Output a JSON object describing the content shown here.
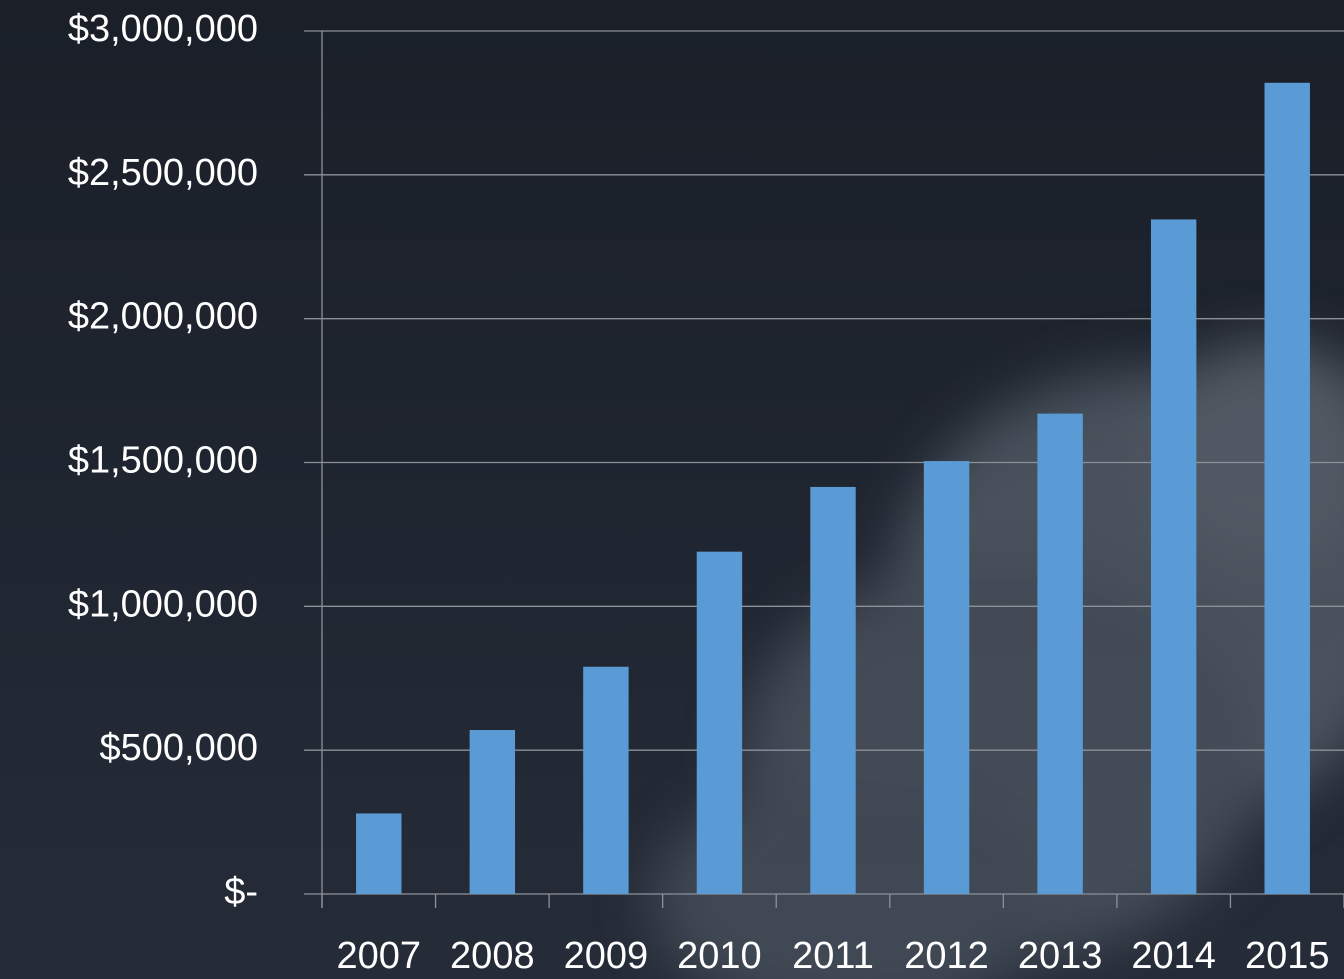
{
  "chart_data": {
    "type": "bar",
    "categories": [
      "2007",
      "2008",
      "2009",
      "2010",
      "2011",
      "2012",
      "2013",
      "2014",
      "2015"
    ],
    "values": [
      280000,
      570000,
      790000,
      1190000,
      1415000,
      1505000,
      1670000,
      2345000,
      2820000
    ],
    "color": "#5b9bd5",
    "ylim": [
      0,
      3000000
    ],
    "yticks": [
      {
        "value": 0,
        "label": "$-"
      },
      {
        "value": 500000,
        "label": "$500,000"
      },
      {
        "value": 1000000,
        "label": "$1,000,000"
      },
      {
        "value": 1500000,
        "label": "$1,500,000"
      },
      {
        "value": 2000000,
        "label": "$2,000,000"
      },
      {
        "value": 2500000,
        "label": "$2,500,000"
      },
      {
        "value": 3000000,
        "label": "$3,000,000"
      }
    ],
    "grid": true
  }
}
